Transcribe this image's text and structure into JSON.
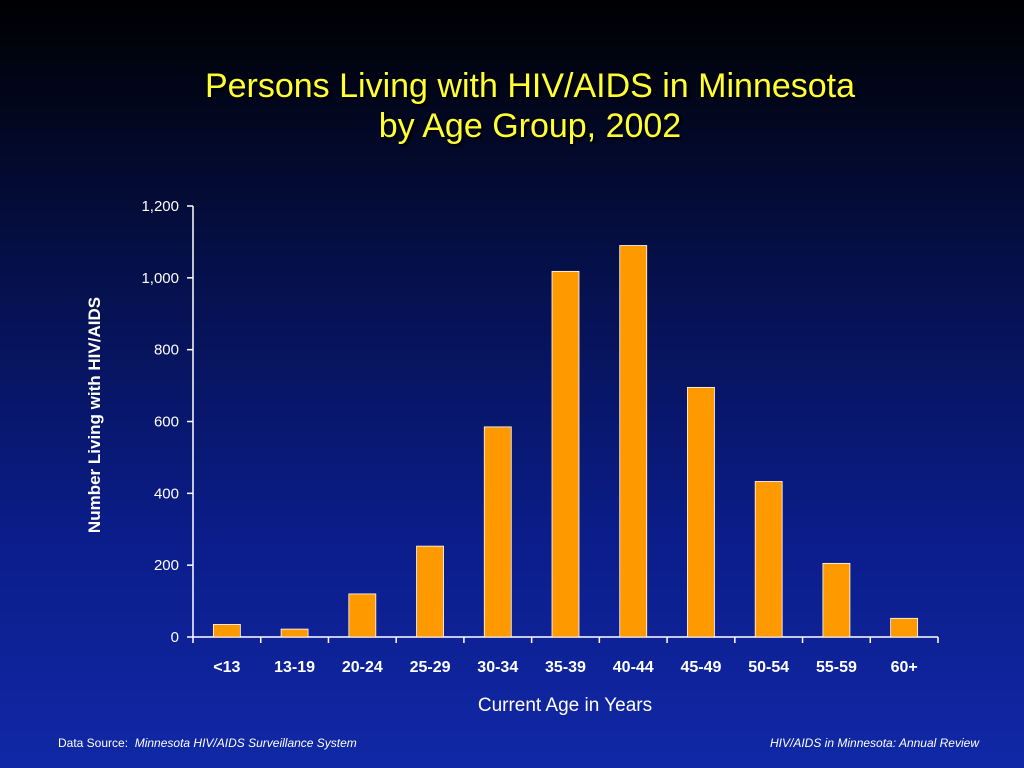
{
  "title": {
    "line1": "Persons Living with HIV/AIDS in Minnesota",
    "line2": "by Age Group, 2002"
  },
  "footer": {
    "source_label": "Data Source:",
    "source_name": "Minnesota HIV/AIDS Surveillance System",
    "publication": "HIV/AIDS in Minnesota: Annual Review"
  },
  "colors": {
    "bar": "#ff9900",
    "title": "#ffff33",
    "text": "#ffffff"
  },
  "chart_data": {
    "type": "bar",
    "xlabel": "Current Age in Years",
    "ylabel": "Number Living with HIV/AIDS",
    "ylim": [
      0,
      1200
    ],
    "yticks": [
      0,
      200,
      400,
      600,
      800,
      1000,
      1200
    ],
    "ytick_labels": [
      "0",
      "200",
      "400",
      "600",
      "800",
      "1,000",
      "1,200"
    ],
    "categories": [
      "<13",
      "13-19",
      "20-24",
      "25-29",
      "30-34",
      "35-39",
      "40-44",
      "45-49",
      "50-54",
      "55-59",
      "60+"
    ],
    "values": [
      35,
      22,
      120,
      253,
      585,
      1018,
      1090,
      695,
      433,
      205,
      52
    ],
    "grid": false,
    "legend": "none"
  }
}
